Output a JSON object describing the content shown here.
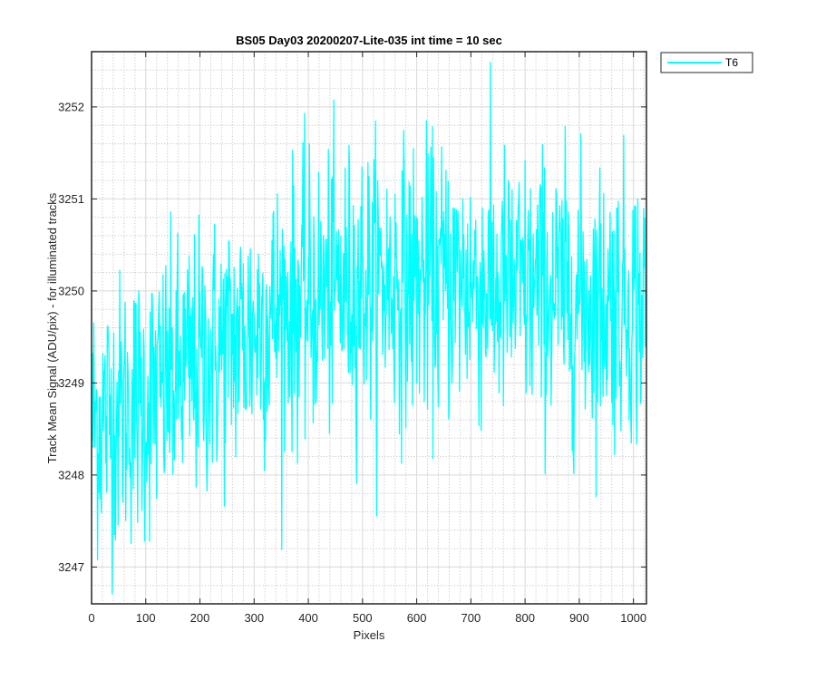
{
  "chart_data": {
    "type": "line",
    "title": "BS05 Day03 20200207-Lite-035 int time = 10 sec",
    "xlabel": "Pixels",
    "ylabel": "Track Mean Signal (ADU/pix) - for illuminated tracks",
    "xlim": [
      0,
      1024
    ],
    "ylim": [
      3246.6,
      3252.6
    ],
    "x_ticks": [
      0,
      100,
      200,
      300,
      400,
      500,
      600,
      700,
      800,
      900,
      1000
    ],
    "y_ticks": [
      3247,
      3248,
      3249,
      3250,
      3251,
      3252
    ],
    "grid": true,
    "minor_grid": true,
    "legend_position": "outside-top-right",
    "series": [
      {
        "name": "T6",
        "color": "#00ffff",
        "x_start": 1,
        "x_end": 1024,
        "trend_x": [
          0,
          50,
          100,
          150,
          200,
          250,
          300,
          350,
          400,
          450,
          500,
          550,
          600,
          650,
          700,
          750,
          800,
          850,
          900,
          950,
          1000,
          1024
        ],
        "trend_y": [
          3248.6,
          3248.7,
          3248.8,
          3249.0,
          3249.2,
          3249.4,
          3249.6,
          3249.8,
          3249.9,
          3250.0,
          3250.1,
          3250.1,
          3250.1,
          3250.1,
          3250.1,
          3250.0,
          3250.0,
          3250.0,
          3249.9,
          3249.9,
          3249.9,
          3249.8
        ],
        "noise_std": 0.75,
        "min": 3246.6,
        "max": 3252.6
      }
    ]
  }
}
